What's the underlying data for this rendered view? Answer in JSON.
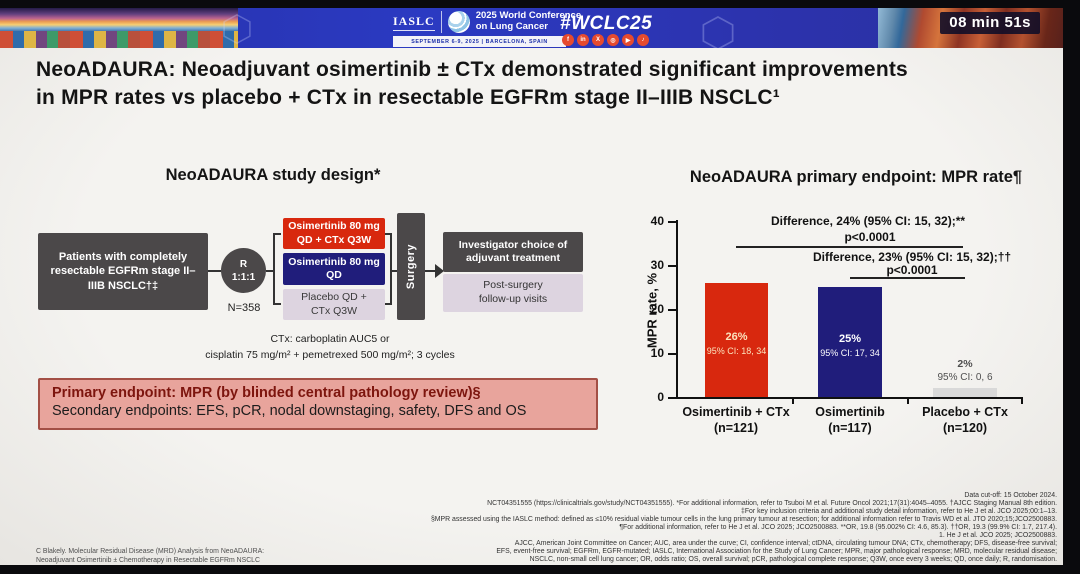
{
  "banner": {
    "org_logo": "IASLC",
    "conference_line1": "2025 World Conference",
    "conference_line2": "on Lung Cancer",
    "dates": "SEPTEMBER 6-9, 2025  |  BARCELONA, SPAIN",
    "hashtag": "#WCLC25",
    "timer": "08 min 51s",
    "socials": [
      {
        "name": "facebook",
        "glyph": "f"
      },
      {
        "name": "linkedin",
        "glyph": "in"
      },
      {
        "name": "x",
        "glyph": "X"
      },
      {
        "name": "instagram",
        "glyph": "◎"
      },
      {
        "name": "youtube",
        "glyph": "▶"
      },
      {
        "name": "tiktok",
        "glyph": "♪"
      }
    ]
  },
  "slide": {
    "title": {
      "line1": "NeoADAURA: Neoadjuvant osimertinib ± CTx demonstrated significant improvements",
      "line2": "in MPR rates vs placebo + CTx in resectable EGFRm stage II–IIIB NSCLC¹"
    },
    "design": {
      "heading": "NeoADAURA study design*",
      "patients": "Patients with completely resectable EGFRm stage II–IIIB NSCLC†‡",
      "r_label": "R",
      "r_ratio": "1:1:1",
      "n_label": "N=358",
      "arm1_line1": "Osimertinib 80 mg",
      "arm1_line2": "QD + CTx Q3W",
      "arm2_line1": "Osimertinib 80 mg",
      "arm2_line2": "QD",
      "arm3_line1": "Placebo QD +",
      "arm3_line2": "CTx Q3W",
      "surgery": "Surgery",
      "adjuvant": "Investigator choice of adjuvant treatment",
      "followup_line1": "Post-surgery",
      "followup_line2": "follow-up visits",
      "ctx_line1": "CTx: carboplatin AUC5 or",
      "ctx_line2": "cisplatin 75 mg/m² + pemetrexed 500 mg/m²; 3 cycles"
    },
    "endpoints": {
      "primary": "Primary endpoint: MPR (by blinded central pathology review)§",
      "secondary": "Secondary endpoints: EFS, pCR, nodal downstaging, safety, DFS and OS"
    },
    "chart": {
      "heading": "NeoADAURA primary endpoint: MPR rate¶",
      "diff1": "Difference, 24% (95% CI: 15, 32);**",
      "diff1_p": "p<0.0001",
      "diff2": "Difference, 23% (95% CI: 15, 32);††",
      "diff2_p": "p<0.0001",
      "bars": [
        {
          "pct": "26%",
          "ci": "95% CI: 18, 34",
          "cat": "Osimertinib + CTx",
          "n": "(n=121)"
        },
        {
          "pct": "25%",
          "ci": "95% CI: 17, 34",
          "cat": "Osimertinib",
          "n": "(n=117)"
        },
        {
          "pct": "2%",
          "ci": "95% CI: 0, 6",
          "cat": "Placebo + CTx",
          "n": "(n=120)"
        }
      ]
    },
    "footnotes": {
      "right": [
        "Data cut-off: 15 October 2024.",
        "NCT04351555 (https://clinicaltrials.gov/study/NCT04351555). *For additional information, refer to Tsuboi M et al. Future Oncol 2021;17(31):4045–4055. †AJCC Staging Manual 8th edition.",
        "‡For key inclusion criteria and additional study detail information, refer to He J et al. JCO 2025;00:1–13.",
        "§MPR assessed using the IASLC method: defined as ≤10% residual viable tumour cells in the lung primary tumour at resection; for additional information refer to Travis WD et al. JTO 2020;15;JCO2500883.",
        "¶For additional information, refer to He J et al. JCO 2025; JCO2500883. **OR, 19.8 (95.002% CI: 4.6, 85.3). ††OR, 19.3 (99.9% CI: 1.7, 217.4).",
        "1. He J et al. JCO 2025; JCO2500883.",
        "AJCC, American Joint Committee on Cancer; AUC, area under the curve; CI, confidence interval; ctDNA, circulating tumour DNA; CTx, chemotherapy; DFS, disease-free survival;",
        "EFS, event-free survival; EGFRm, EGFR-mutated; IASLC, International Association for the Study of Lung Cancer; MPR, major pathological response; MRD, molecular residual disease;",
        "NSCLC, non-small cell lung cancer; OR, odds ratio; OS, overall survival; pCR, pathological complete response; Q3W, once every 3 weeks; QD, once daily; R, randomisation."
      ],
      "left": [
        "C Blakely. Molecular Residual Disease (MRD) Analysis from NeoADAURA:",
        "Neoadjuvant Osimertinib ± Chemotherapy in Resectable EGFRm NSCLC"
      ]
    }
  },
  "chart_data": {
    "type": "bar",
    "title": "NeoADAURA primary endpoint: MPR rate",
    "ylabel": "MPR rate, %",
    "ylim": [
      0,
      40
    ],
    "yticks": [
      0,
      10,
      20,
      30,
      40
    ],
    "ytick_labels": [
      "40",
      "30",
      "20",
      "10",
      "0"
    ],
    "categories": [
      "Osimertinib + CTx (n=121)",
      "Osimertinib (n=117)",
      "Placebo + CTx (n=120)"
    ],
    "values": [
      26,
      25,
      2
    ],
    "ci_95": [
      "18, 34",
      "17, 34",
      "0, 6"
    ],
    "colors": [
      "#d8280e",
      "#201d7b",
      "#d9d9d9"
    ],
    "annotations": [
      {
        "label": "Difference, 24% (95% CI: 15, 32);**",
        "p_value": "p<0.0001",
        "compares": [
          "Osimertinib + CTx",
          "Placebo + CTx"
        ]
      },
      {
        "label": "Difference, 23% (95% CI: 15, 32);††",
        "p_value": "p<0.0001",
        "compares": [
          "Osimertinib",
          "Placebo + CTx"
        ]
      }
    ],
    "grid": false,
    "legend": false
  }
}
